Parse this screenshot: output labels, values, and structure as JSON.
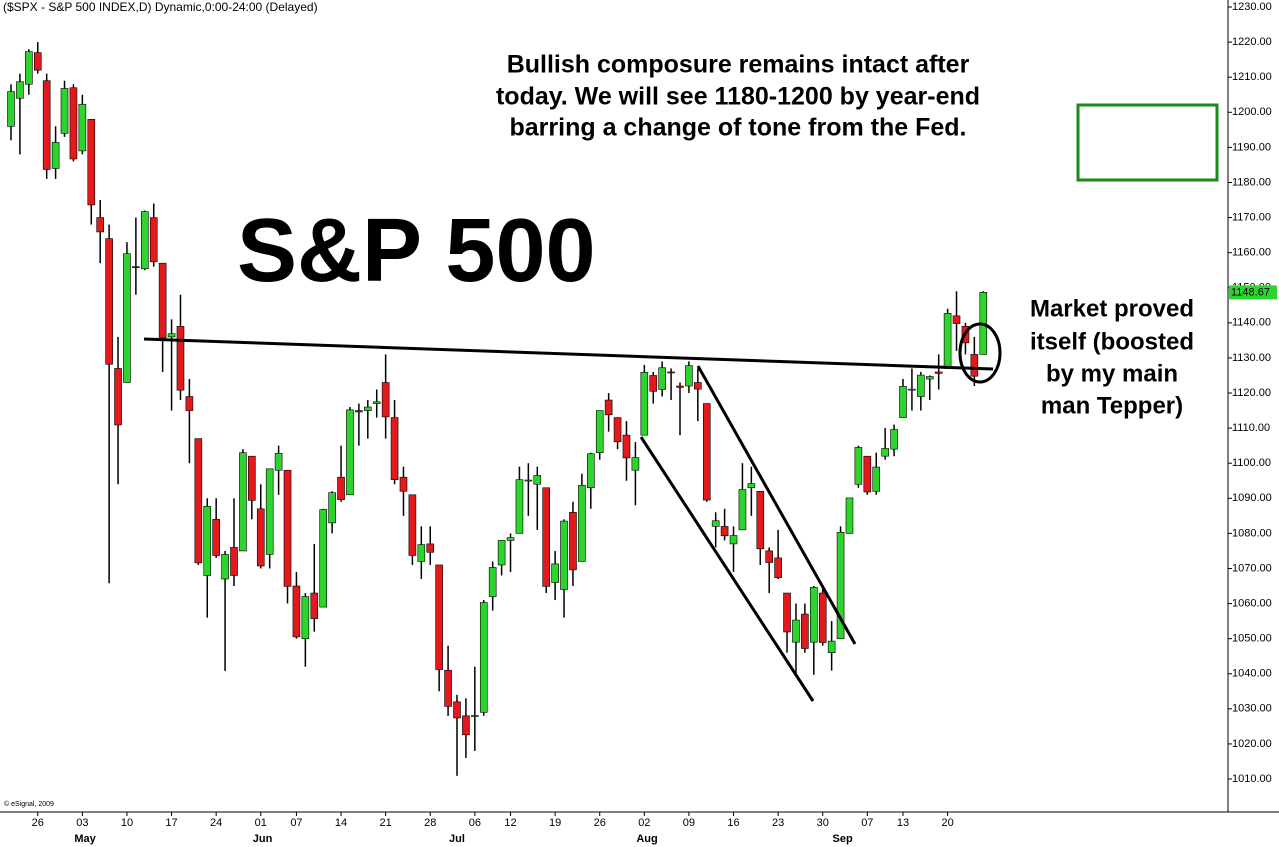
{
  "chart_data": {
    "type": "candlestick",
    "title": "($SPX - S&P 500 INDEX,D) Dynamic,0:00-24:00 (Delayed)",
    "heading": "S&P 500",
    "note": [
      "Bullish composure remains intact after",
      "today. We will see 1180-1200 by year-end",
      "barring a change of tone from the Fed."
    ],
    "side_note": [
      "Market proved",
      "itself (boosted",
      "by my main",
      "man Tepper)"
    ],
    "copyright": "© eSignal, 2009",
    "months": [
      "May",
      "Jun",
      "Jul",
      "Aug",
      "Sep"
    ],
    "categories": [
      null,
      null,
      null,
      "26",
      null,
      null,
      null,
      null,
      "03",
      null,
      null,
      null,
      null,
      "10",
      null,
      null,
      null,
      null,
      "17",
      null,
      null,
      null,
      null,
      "24",
      null,
      null,
      null,
      null,
      "01",
      null,
      null,
      null,
      "07",
      null,
      null,
      null,
      null,
      "14",
      null,
      null,
      null,
      null,
      "21",
      null,
      null,
      null,
      null,
      "28",
      null,
      null,
      null,
      null,
      "06",
      null,
      null,
      null,
      "12",
      null,
      null,
      null,
      null,
      "19",
      null,
      null,
      null,
      null,
      "26",
      null,
      null,
      null,
      null,
      "02",
      null,
      null,
      null,
      null,
      "09",
      null,
      null,
      null,
      null,
      "16",
      null,
      null,
      null,
      null,
      "23",
      null,
      null,
      null,
      null,
      "30",
      null,
      null,
      null,
      null,
      "07",
      null,
      null,
      null,
      "13",
      null,
      null,
      null,
      null,
      "20",
      null,
      null,
      null,
      null
    ],
    "open": [
      1196,
      1204,
      1208,
      1217,
      1209,
      1184,
      1194,
      1207,
      1189,
      1198,
      1170,
      1164,
      1127,
      1123,
      1156,
      1155.4,
      1170,
      1157,
      1136,
      1139,
      1119,
      1107,
      1068,
      1084,
      1067,
      1076,
      1075,
      1102,
      1087,
      1074,
      1098,
      1098,
      1065,
      1050,
      1063,
      1059,
      1083,
      1096,
      1091,
      1115,
      1115,
      1117,
      1123,
      1113,
      1096,
      1091,
      1072,
      1077,
      1071,
      1041,
      1032,
      1028,
      1028,
      1029,
      1062,
      1071,
      1078,
      1080,
      1095,
      1094,
      1093,
      1066,
      1064,
      1086,
      1072,
      1093,
      1103,
      1118,
      1113,
      1108,
      1098,
      1108,
      1125,
      1121,
      1126,
      1122,
      1122,
      1123,
      1117,
      1082,
      1082,
      1077,
      1081,
      1093,
      1092,
      1075,
      1073,
      1063,
      1049,
      1057,
      1049,
      1063,
      1046,
      1050,
      1080,
      1094,
      1102,
      1092,
      1102,
      1104,
      1113,
      1121,
      1119,
      1124,
      1126,
      1127,
      1142,
      1139,
      1131,
      1131
    ],
    "high": [
      1208,
      1211,
      1218,
      1220,
      1211,
      1196,
      1209,
      1208,
      1205,
      1198,
      1175,
      1168,
      1136,
      1163,
      1170,
      1172,
      1174,
      1157,
      1141,
      1148,
      1124,
      1107,
      1090,
      1090,
      1075,
      1090,
      1104,
      1102,
      1094,
      1098,
      1105,
      1098,
      1069,
      1063,
      1077,
      1087,
      1092,
      1105,
      1116,
      1117,
      1118,
      1121,
      1131,
      1118,
      1099,
      1091,
      1082,
      1082,
      1071,
      1048,
      1034,
      1033,
      1042,
      1061,
      1072,
      1078,
      1080,
      1099,
      1100,
      1099,
      1093,
      1075,
      1084,
      1089,
      1097,
      1103,
      1115,
      1120,
      1113,
      1112,
      1106,
      1128,
      1126,
      1129,
      1127,
      1123,
      1129,
      1127,
      1117,
      1086,
      1087,
      1082,
      1100,
      1099,
      1092,
      1076,
      1081,
      1063,
      1060,
      1060,
      1065,
      1064,
      1055,
      1082,
      1090,
      1105,
      1102,
      1103,
      1110,
      1111,
      1124,
      1127,
      1126,
      1125,
      1131,
      1144,
      1149,
      1140,
      1136,
      1149
    ],
    "low": [
      1192,
      1188,
      1205,
      1211,
      1181,
      1181,
      1193,
      1186,
      1188,
      1168,
      1157,
      1065.8,
      1094,
      1123,
      1148,
      1155,
      1156,
      1126,
      1115,
      1118,
      1100,
      1071,
      1056,
      1073,
      1040.8,
      1065,
      1075,
      1084,
      1070,
      1070,
      1091,
      1060,
      1050,
      1042,
      1052,
      1059,
      1080,
      1089,
      1091,
      1105,
      1107,
      1113,
      1107,
      1094,
      1085,
      1071,
      1067,
      1071,
      1035,
      1028,
      1010.9,
      1016,
      1018,
      1028,
      1058,
      1068,
      1069,
      1080,
      1085,
      1081,
      1063,
      1061,
      1056,
      1065,
      1072,
      1087,
      1101,
      1109,
      1104,
      1095,
      1088,
      1108,
      1117,
      1119,
      1118,
      1108,
      1120,
      1112,
      1089,
      1076,
      1078,
      1069,
      1081,
      1085,
      1071,
      1063,
      1067,
      1046,
      1040,
      1046,
      1039.7,
      1048,
      1040.9,
      1050,
      1080,
      1093,
      1091,
      1091,
      1101,
      1102,
      1113,
      1115,
      1115,
      1118,
      1121,
      1127,
      1132,
      1131,
      1122,
      1131
    ],
    "close": [
      1205.9,
      1208.7,
      1217.3,
      1212,
      1183.7,
      1191.4,
      1206.8,
      1186.7,
      1202.3,
      1173.6,
      1165.9,
      1128.2,
      1110.9,
      1159.7,
      1155.8,
      1171.7,
      1157.4,
      1135.7,
      1136.9,
      1120.8,
      1115,
      1071.6,
      1087.7,
      1073.7,
      1074,
      1068,
      1103,
      1089.4,
      1070.7,
      1098.4,
      1102.8,
      1064.9,
      1050.5,
      1062,
      1055.7,
      1086.8,
      1091.6,
      1089.6,
      1115.2,
      1114.6,
      1116,
      1117.5,
      1113.2,
      1095.3,
      1092,
      1073.7,
      1076.8,
      1074.6,
      1041.2,
      1030.7,
      1027.4,
      1022.6,
      1028.1,
      1060.3,
      1070.3,
      1078,
      1078.8,
      1095.3,
      1095.2,
      1096.5,
      1064.9,
      1071.3,
      1083.5,
      1069.6,
      1093.7,
      1102.7,
      1115,
      1113.8,
      1106.1,
      1101.5,
      1101.6,
      1125.9,
      1120.5,
      1127.2,
      1125.8,
      1121.6,
      1127.8,
      1121.1,
      1089.5,
      1083.6,
      1079.3,
      1079.4,
      1092.5,
      1094.2,
      1075.6,
      1071.7,
      1067.4,
      1051.9,
      1055.3,
      1047.2,
      1064.6,
      1048.9,
      1049.3,
      1080.3,
      1090.1,
      1104.5,
      1091.8,
      1098.9,
      1104.2,
      1109.6,
      1121.9,
      1121.1,
      1125.1,
      1124.7,
      1125.6,
      1142.7,
      1139.8,
      1134.3,
      1124.8,
      1148.7
    ],
    "up_color": "#2ed42e",
    "down_color": "#e31a1c",
    "last_value": 1148.67,
    "ylim": [
      1000.6,
      1232.0
    ],
    "yticks": [
      {
        "value": 1010,
        "label": "1010.00"
      },
      {
        "value": 1020,
        "label": "1020.00"
      },
      {
        "value": 1030,
        "label": "1030.00"
      },
      {
        "value": 1040,
        "label": "1040.00"
      },
      {
        "value": 1050,
        "label": "1050.00"
      },
      {
        "value": 1060,
        "label": "1060.00"
      },
      {
        "value": 1070,
        "label": "1070.00"
      },
      {
        "value": 1080,
        "label": "1080.00"
      },
      {
        "value": 1090,
        "label": "1090.00"
      },
      {
        "value": 1100,
        "label": "1100.00"
      },
      {
        "value": 1110,
        "label": "1110.00"
      },
      {
        "value": 1120,
        "label": "1120.00"
      },
      {
        "value": 1130,
        "label": "1130.00"
      },
      {
        "value": 1140,
        "label": "1140.00"
      },
      {
        "value": 1150,
        "label": "1150.00"
      },
      {
        "value": 1160,
        "label": "1160.00"
      },
      {
        "value": 1170,
        "label": "1170.00"
      },
      {
        "value": 1180,
        "label": "1180.00"
      },
      {
        "value": 1190,
        "label": "1190.00"
      },
      {
        "value": 1200,
        "label": "1200.00"
      },
      {
        "value": 1210,
        "label": "1210.00"
      },
      {
        "value": 1220,
        "label": "1220.00"
      },
      {
        "value": 1230,
        "label": "1230.00"
      }
    ],
    "grid": false
  }
}
